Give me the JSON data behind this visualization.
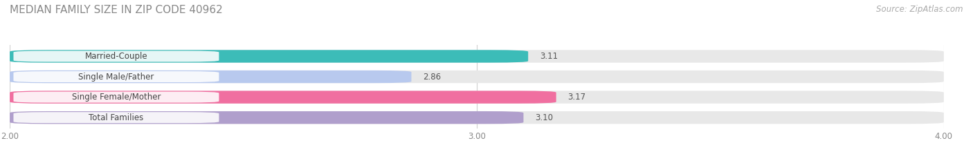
{
  "title": "MEDIAN FAMILY SIZE IN ZIP CODE 40962",
  "source": "Source: ZipAtlas.com",
  "categories": [
    "Married-Couple",
    "Single Male/Father",
    "Single Female/Mother",
    "Total Families"
  ],
  "values": [
    3.11,
    2.86,
    3.17,
    3.1
  ],
  "bar_colors": [
    "#3cbcb8",
    "#b8c9ee",
    "#f06fa0",
    "#b09fcc"
  ],
  "bar_bg_color": "#e8e8e8",
  "xlim": [
    2.0,
    4.0
  ],
  "xticks": [
    2.0,
    3.0,
    4.0
  ],
  "xtick_labels": [
    "2.00",
    "3.00",
    "4.00"
  ],
  "background_color": "#ffffff",
  "title_fontsize": 11,
  "label_fontsize": 8.5,
  "value_fontsize": 8.5,
  "source_fontsize": 8.5,
  "bar_height": 0.62,
  "bar_gap": 0.18
}
